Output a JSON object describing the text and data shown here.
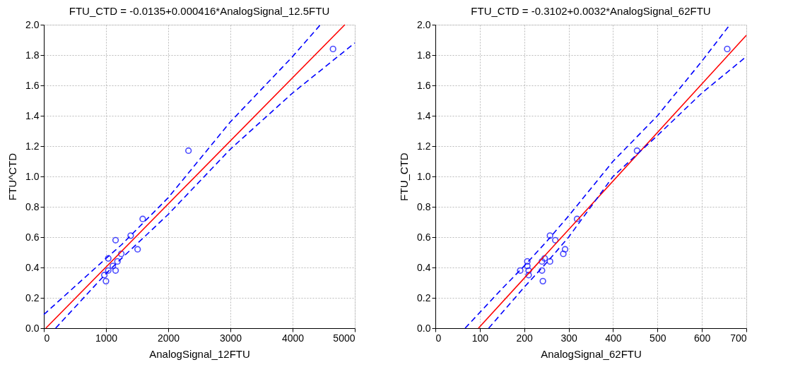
{
  "chart_data": [
    {
      "type": "scatter",
      "title": "FTU_CTD = -0.0135+0.000416*AnalogSignal_12.5FTU",
      "xlabel": "AnalogSignal_12FTU",
      "ylabel": "FTU^CTD",
      "xlim": [
        0,
        5000
      ],
      "xticks": [
        0,
        1000,
        2000,
        3000,
        4000,
        5000
      ],
      "ylim": [
        0,
        2
      ],
      "yticks": [
        {
          "value": 0,
          "label": "0.0"
        },
        0.2,
        0.4,
        0.6,
        0.8,
        {
          "value": 1,
          "label": "1.0"
        },
        1.2,
        1.4,
        1.6,
        1.8,
        {
          "value": 2,
          "label": "2.0"
        }
      ],
      "grid": true,
      "series": [
        {
          "marker": "circle",
          "color": "#0000ff",
          "x": [
            1590,
            1397,
            1154,
            1508,
            1246,
            1036,
            1184,
            1110,
            1036,
            1154,
            973,
            999,
            2326,
            4650
          ],
          "values": [
            0.72,
            0.61,
            0.58,
            0.52,
            0.49,
            0.46,
            0.44,
            0.41,
            0.38,
            0.38,
            0.35,
            0.31,
            1.17,
            1.84
          ]
        },
        {
          "type": "line",
          "line_style": "solid",
          "color": "#ff0000",
          "x": [
            32,
            4840
          ],
          "values": [
            0,
            2.0
          ]
        },
        {
          "type": "line",
          "line_style": "dashed",
          "color": "#0000ff",
          "x": [
            0,
            1000,
            1250,
            2000,
            3000,
            4000,
            4447
          ],
          "values": [
            0.09,
            0.46,
            0.55,
            0.86,
            1.36,
            1.79,
            2.0
          ]
        },
        {
          "type": "line",
          "line_style": "dashed",
          "color": "#0000ff",
          "x": [
            190,
            1000,
            1250,
            2000,
            3000,
            4000,
            5000
          ],
          "values": [
            0,
            0.36,
            0.46,
            0.75,
            1.18,
            1.55,
            1.88
          ]
        }
      ]
    },
    {
      "type": "scatter",
      "title": "FTU_CTD = -0.3102+0.0032*AnalogSignal_62FTU",
      "xlabel": "AnalogSignal_62FTU",
      "ylabel": "FTU_CTD",
      "xlim": [
        0,
        700
      ],
      "xticks": [
        0,
        100,
        200,
        300,
        400,
        500,
        600,
        700
      ],
      "ylim": [
        0,
        2
      ],
      "yticks": [
        {
          "value": 0,
          "label": "0.0"
        },
        0.2,
        0.4,
        0.6,
        0.8,
        {
          "value": 1,
          "label": "1.0"
        },
        1.2,
        1.4,
        1.6,
        1.8,
        {
          "value": 2,
          "label": "2.0"
        }
      ],
      "grid": true,
      "series": [
        {
          "marker": "circle",
          "color": "#0000ff",
          "x": [
            319,
            258,
            270,
            292,
            288,
            207,
            207,
            240,
            246,
            258,
            191,
            210,
            210,
            240,
            242,
            454,
            657
          ],
          "values": [
            0.72,
            0.61,
            0.58,
            0.52,
            0.49,
            0.44,
            0.41,
            0.44,
            0.46,
            0.44,
            0.38,
            0.38,
            0.35,
            0.38,
            0.31,
            1.17,
            1.84
          ]
        },
        {
          "type": "line",
          "line_style": "solid",
          "color": "#ff0000",
          "x": [
            97,
            700
          ],
          "values": [
            0,
            1.93
          ]
        },
        {
          "type": "line",
          "line_style": "dashed",
          "color": "#0000ff",
          "x": [
            67,
            150,
            200,
            250,
            300,
            400,
            500,
            600,
            663
          ],
          "values": [
            0,
            0.26,
            0.41,
            0.57,
            0.74,
            1.1,
            1.4,
            1.76,
            2.0
          ]
        },
        {
          "type": "line",
          "line_style": "dashed",
          "color": "#0000ff",
          "x": [
            120,
            200,
            250,
            300,
            400,
            500,
            600,
            700
          ],
          "values": [
            0,
            0.27,
            0.43,
            0.6,
            1.0,
            1.27,
            1.55,
            1.79
          ]
        }
      ]
    }
  ]
}
